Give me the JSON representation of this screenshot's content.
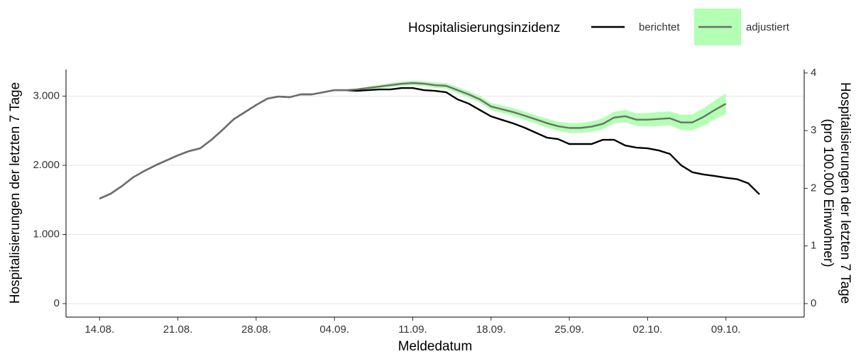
{
  "chart_data": {
    "type": "line",
    "x_label": "Meldedatum",
    "y_label": "Hospitalisierungen der letzten 7 Tage",
    "y2_label": [
      "Hospitalisierungen der letzten 7 Tage",
      "(pro 100.000 Einwohner)"
    ],
    "legend_title": "Hospitalisierungsinzidenz",
    "legend_position": "top",
    "grid": true,
    "x": [
      "14.08.",
      "15.08.",
      "16.08.",
      "17.08.",
      "18.08.",
      "19.08.",
      "20.08.",
      "21.08.",
      "22.08.",
      "23.08.",
      "24.08.",
      "25.08.",
      "26.08.",
      "27.08.",
      "28.08.",
      "29.08.",
      "30.08.",
      "31.08.",
      "01.09.",
      "02.09.",
      "03.09.",
      "04.09.",
      "05.09.",
      "06.09.",
      "07.09.",
      "08.09.",
      "09.09.",
      "10.09.",
      "11.09.",
      "12.09.",
      "13.09.",
      "14.09.",
      "15.09.",
      "16.09.",
      "17.09.",
      "18.09.",
      "19.09.",
      "20.09.",
      "21.09.",
      "22.09.",
      "23.09.",
      "24.09.",
      "25.09.",
      "26.09.",
      "27.09.",
      "28.09.",
      "29.09.",
      "30.09.",
      "01.10.",
      "02.10.",
      "03.10.",
      "04.10.",
      "05.10.",
      "06.10.",
      "07.10.",
      "08.10.",
      "09.10.",
      "10.10.",
      "11.10.",
      "12.10."
    ],
    "xticks": [
      "14.08.",
      "21.08.",
      "28.08.",
      "04.09.",
      "11.09.",
      "18.09.",
      "25.09.",
      "02.10.",
      "09.10."
    ],
    "ylim": [
      -195,
      3385
    ],
    "yticks": [
      0,
      {
        "value": 1000,
        "label": "1.000"
      },
      {
        "value": 2000,
        "label": "2.000"
      },
      {
        "value": 3000,
        "label": "3.000"
      }
    ],
    "y2lim": [
      -0.234,
      4.06
    ],
    "y2ticks": [
      0,
      1,
      2,
      3,
      4
    ],
    "series": [
      {
        "name": "berichtet",
        "color": "#000000",
        "values": [
          1518,
          1590,
          1700,
          1826,
          1918,
          2000,
          2072,
          2144,
          2205,
          2246,
          2369,
          2513,
          2667,
          2769,
          2872,
          2964,
          2995,
          2985,
          3026,
          3026,
          3056,
          3087,
          3087,
          3077,
          3087,
          3097,
          3097,
          3118,
          3118,
          3087,
          3077,
          3056,
          2954,
          2892,
          2800,
          2708,
          2656,
          2605,
          2544,
          2472,
          2400,
          2379,
          2308,
          2308,
          2308,
          2369,
          2369,
          2287,
          2256,
          2246,
          2215,
          2164,
          2000,
          1900,
          1867,
          1846,
          1820,
          1800,
          1740,
          1580
        ]
      },
      {
        "name": "adjustiert",
        "color": "#6e6e6e",
        "band_color": "#b3ffb3",
        "values": [
          1518,
          1590,
          1700,
          1826,
          1918,
          2000,
          2072,
          2144,
          2205,
          2246,
          2369,
          2513,
          2667,
          2769,
          2872,
          2964,
          2995,
          2985,
          3026,
          3026,
          3056,
          3087,
          3087,
          3097,
          3118,
          3138,
          3159,
          3179,
          3190,
          3180,
          3159,
          3149,
          3087,
          3026,
          2954,
          2851,
          2810,
          2769,
          2718,
          2665,
          2610,
          2565,
          2540,
          2540,
          2560,
          2600,
          2690,
          2710,
          2660,
          2660,
          2670,
          2680,
          2620,
          2620,
          2700,
          2800,
          2890,
          null,
          null,
          null
        ],
        "lower": [
          null,
          null,
          null,
          null,
          null,
          null,
          null,
          null,
          null,
          null,
          null,
          null,
          null,
          null,
          null,
          null,
          null,
          null,
          null,
          null,
          null,
          null,
          3077,
          3082,
          3098,
          3113,
          3129,
          3149,
          3155,
          3145,
          3119,
          3109,
          3042,
          2981,
          2904,
          2801,
          2755,
          2714,
          2658,
          2605,
          2545,
          2500,
          2470,
          2470,
          2485,
          2520,
          2605,
          2620,
          2570,
          2565,
          2570,
          2580,
          2510,
          2505,
          2575,
          2665,
          2740,
          null,
          null,
          null
        ],
        "upper": [
          null,
          null,
          null,
          null,
          null,
          null,
          null,
          null,
          null,
          null,
          null,
          null,
          null,
          null,
          null,
          null,
          null,
          null,
          null,
          null,
          null,
          null,
          3097,
          3112,
          3138,
          3163,
          3189,
          3209,
          3225,
          3215,
          3199,
          3189,
          3132,
          3071,
          3004,
          2901,
          2865,
          2824,
          2778,
          2725,
          2675,
          2630,
          2610,
          2610,
          2635,
          2680,
          2775,
          2800,
          2750,
          2755,
          2770,
          2780,
          2730,
          2735,
          2825,
          2935,
          3040,
          null,
          null,
          null
        ]
      }
    ]
  }
}
